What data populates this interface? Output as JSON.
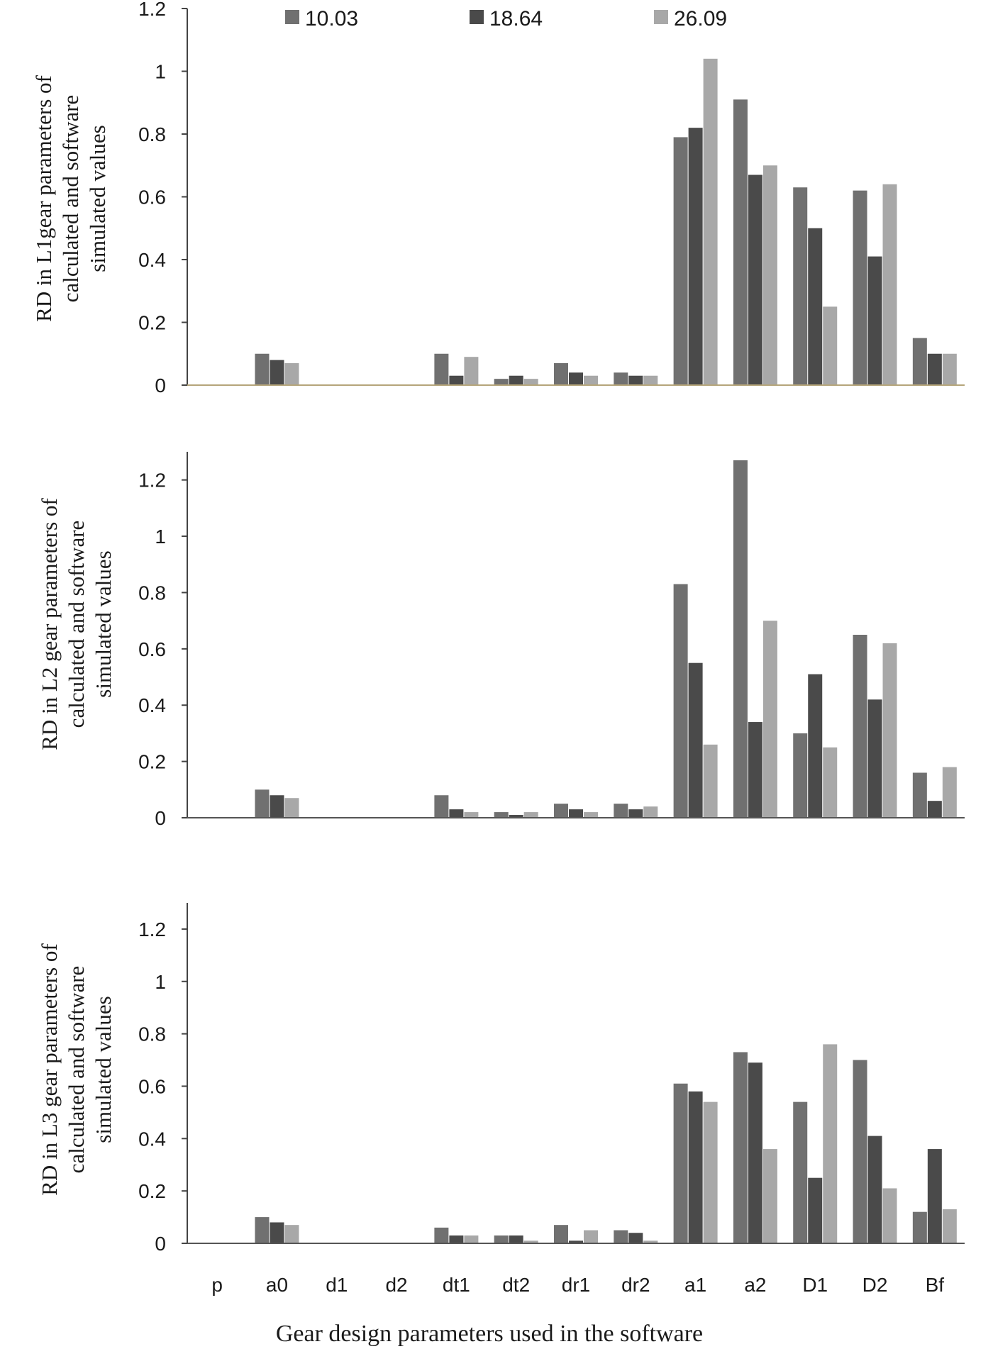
{
  "legend": [
    {
      "label": "10.03",
      "color": "#707070"
    },
    {
      "label": "18.64",
      "color": "#4a4a4a"
    },
    {
      "label": "26.09",
      "color": "#a8a8a8"
    }
  ],
  "x_axis_title": "Gear design parameters used in the software",
  "chart_data": [
    {
      "type": "bar",
      "title": "",
      "ylabel_lines": [
        "RD in L1gear parameters of",
        "calculated and software",
        "simulated values"
      ],
      "categories": [
        "p",
        "a0",
        "d1",
        "d2",
        "dt1",
        "dt2",
        "dr1",
        "dr2",
        "a1",
        "a2",
        "D1",
        "D2",
        "Bf"
      ],
      "show_category_labels": false,
      "ylim": [
        0,
        1.2
      ],
      "yticks": [
        0,
        0.2,
        0.4,
        0.6,
        0.8,
        1,
        1.2
      ],
      "axis_color": "#b5a57a",
      "series": [
        {
          "name": "10.03",
          "values": [
            0,
            0.1,
            0,
            0,
            0.1,
            0.02,
            0.07,
            0.04,
            0.79,
            0.91,
            0.63,
            0.62,
            0.15
          ]
        },
        {
          "name": "18.64",
          "values": [
            0,
            0.08,
            0,
            0,
            0.03,
            0.03,
            0.04,
            0.03,
            0.82,
            0.67,
            0.5,
            0.41,
            0.1
          ]
        },
        {
          "name": "26.09",
          "values": [
            0,
            0.07,
            0,
            0,
            0.09,
            0.02,
            0.03,
            0.03,
            1.04,
            0.7,
            0.25,
            0.64,
            0.1
          ]
        }
      ]
    },
    {
      "type": "bar",
      "title": "",
      "ylabel_lines": [
        "RD in L2 gear parameters of",
        "calculated and software",
        "simulated values"
      ],
      "categories": [
        "p",
        "a0",
        "d1",
        "d2",
        "dt1",
        "dt2",
        "dr1",
        "dr2",
        "a1",
        "a2",
        "D1",
        "D2",
        "Bf"
      ],
      "show_category_labels": false,
      "ylim": [
        0,
        1.3
      ],
      "yticks": [
        0,
        0.2,
        0.4,
        0.6,
        0.8,
        1,
        1.2
      ],
      "axis_color": "#555555",
      "series": [
        {
          "name": "10.03",
          "values": [
            0,
            0.1,
            0,
            0,
            0.08,
            0.02,
            0.05,
            0.05,
            0.83,
            1.27,
            0.3,
            0.65,
            0.16
          ]
        },
        {
          "name": "18.64",
          "values": [
            0,
            0.08,
            0,
            0,
            0.03,
            0.01,
            0.03,
            0.03,
            0.55,
            0.34,
            0.51,
            0.42,
            0.06
          ]
        },
        {
          "name": "26.09",
          "values": [
            0,
            0.07,
            0,
            0,
            0.02,
            0.02,
            0.02,
            0.04,
            0.26,
            0.7,
            0.25,
            0.62,
            0.18
          ]
        }
      ]
    },
    {
      "type": "bar",
      "title": "",
      "ylabel_lines": [
        "RD in L3 gear parameters of",
        "calculated and software",
        "simulated values"
      ],
      "categories": [
        "p",
        "a0",
        "d1",
        "d2",
        "dt1",
        "dt2",
        "dr1",
        "dr2",
        "a1",
        "a2",
        "D1",
        "D2",
        "Bf"
      ],
      "show_category_labels": true,
      "ylim": [
        0,
        1.3
      ],
      "yticks": [
        0,
        0.2,
        0.4,
        0.6,
        0.8,
        1,
        1.2
      ],
      "axis_color": "#555555",
      "series": [
        {
          "name": "10.03",
          "values": [
            0,
            0.1,
            0,
            0,
            0.06,
            0.03,
            0.07,
            0.05,
            0.61,
            0.73,
            0.54,
            0.7,
            0.12
          ]
        },
        {
          "name": "18.64",
          "values": [
            0,
            0.08,
            0,
            0,
            0.03,
            0.03,
            0.01,
            0.04,
            0.58,
            0.69,
            0.25,
            0.41,
            0.36
          ]
        },
        {
          "name": "26.09",
          "values": [
            0,
            0.07,
            0,
            0,
            0.03,
            0.01,
            0.05,
            0.01,
            0.54,
            0.36,
            0.76,
            0.21,
            0.13
          ]
        }
      ]
    }
  ]
}
